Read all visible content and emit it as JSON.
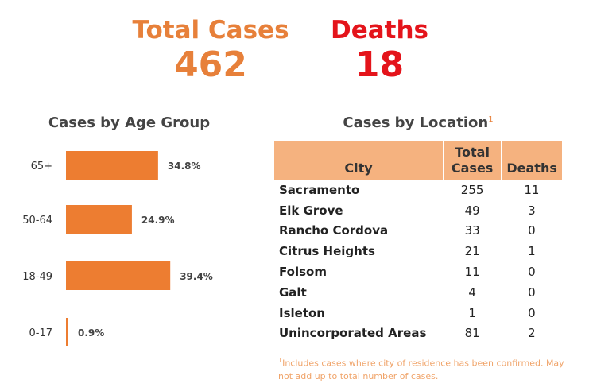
{
  "summary": {
    "total_cases_label": "Total Cases",
    "total_cases_value": "462",
    "deaths_label": "Deaths",
    "deaths_value": "18",
    "total_color": "#e7803a",
    "deaths_color": "#e4141b"
  },
  "age_section": {
    "title": "Cases by Age Group"
  },
  "location_section": {
    "title": "Cases by Location",
    "title_marker": "1",
    "columns": [
      "City",
      "Total Cases",
      "Deaths"
    ],
    "rows": [
      {
        "city": "Sacramento",
        "cases": "255",
        "deaths": "11"
      },
      {
        "city": "Elk Grove",
        "cases": "49",
        "deaths": "3"
      },
      {
        "city": "Rancho Cordova",
        "cases": "33",
        "deaths": "0"
      },
      {
        "city": "Citrus Heights",
        "cases": "21",
        "deaths": "1"
      },
      {
        "city": "Folsom",
        "cases": "11",
        "deaths": "0"
      },
      {
        "city": "Galt",
        "cases": "4",
        "deaths": "0"
      },
      {
        "city": "Isleton",
        "cases": "1",
        "deaths": "0"
      },
      {
        "city": "Unincorporated Areas",
        "cases": "81",
        "deaths": "2"
      }
    ],
    "footnote_marker": "1",
    "footnote": "Includes cases where city of residence has been confirmed. May not add up to total number of cases.",
    "header_color": "#f5b27f"
  },
  "chart_data": [
    {
      "type": "bar",
      "orientation": "horizontal",
      "title": "Cases by Age Group",
      "categories": [
        "65+",
        "50-64",
        "18-49",
        "0-17"
      ],
      "values": [
        34.8,
        24.9,
        39.4,
        0.9
      ],
      "value_labels": [
        "34.8%",
        "24.9%",
        "39.4%",
        "0.9%"
      ],
      "unit": "%",
      "xlim": [
        0,
        100
      ],
      "bar_color": "#ed7d31",
      "grid": false
    },
    {
      "type": "table",
      "title": "Cases by Location",
      "columns": [
        "City",
        "Total Cases",
        "Deaths"
      ],
      "rows": [
        [
          "Sacramento",
          255,
          11
        ],
        [
          "Elk Grove",
          49,
          3
        ],
        [
          "Rancho Cordova",
          33,
          0
        ],
        [
          "Citrus Heights",
          21,
          1
        ],
        [
          "Folsom",
          11,
          0
        ],
        [
          "Galt",
          4,
          0
        ],
        [
          "Isleton",
          1,
          0
        ],
        [
          "Unincorporated Areas",
          81,
          2
        ]
      ]
    }
  ]
}
